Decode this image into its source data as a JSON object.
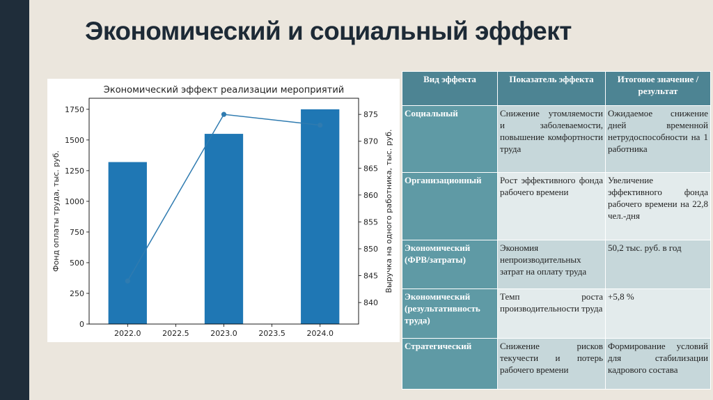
{
  "slide_title": "Экономический и социальный эффект",
  "chart_data": {
    "type": "bar",
    "title": "Экономический эффект реализации мероприятий",
    "x": [
      2022.0,
      2023.0,
      2024.0
    ],
    "bars": {
      "axis": "left",
      "values": [
        1320,
        1550,
        1750
      ]
    },
    "line": {
      "axis": "right",
      "values": [
        844,
        875,
        873
      ]
    },
    "xlim": [
      2021.6,
      2024.4
    ],
    "x_ticks": [
      2022.0,
      2022.5,
      2023.0,
      2023.5,
      2024.0
    ],
    "x_tick_labels": [
      "2022.0",
      "2022.5",
      "2023.0",
      "2023.5",
      "2024.0"
    ],
    "ylabel": "Фонд оплаты труда, тыс. руб.",
    "ylim": [
      0,
      1840
    ],
    "y_ticks": [
      0,
      250,
      500,
      750,
      1000,
      1250,
      1500,
      1750
    ],
    "y_tick_labels": [
      "0",
      "250",
      "500",
      "750",
      "1000",
      "1250",
      "1500",
      "1750"
    ],
    "y2label": "Выручка на одного работника, тыс. руб.",
    "y2lim": [
      836,
      878
    ],
    "y2_ticks": [
      840,
      845,
      850,
      855,
      860,
      865,
      870,
      875
    ],
    "y2_tick_labels": [
      "840",
      "845",
      "850",
      "855",
      "860",
      "865",
      "870",
      "875"
    ],
    "grid": false,
    "bar_color": "#1f77b4",
    "line_color": "#2f7bb0"
  },
  "table": {
    "headers": [
      "Вид эффекта",
      "Показатель эффекта",
      "Итоговое значение / результат"
    ],
    "rows": [
      {
        "type": "Социальный",
        "indicator": "Снижение утомляемости и заболеваемости, повышение комфортности труда",
        "result": "Ожидаемое снижение дней временной нетрудоспособности на 1 работника"
      },
      {
        "type": "Организационный",
        "indicator": "Рост эффективного фонда рабочего времени",
        "result": "Увеличение эффективного фонда рабочего времени на 22,8 чел.-дня"
      },
      {
        "type": "Экономический (ФРВ/затраты)",
        "indicator": "Экономия непроизводительных затрат на оплату труда",
        "result": "50,2 тыс. руб. в год"
      },
      {
        "type": "Экономический (результативность труда)",
        "indicator": "Темп роста производительности труда",
        "result": "+5,8 %"
      },
      {
        "type": "Стратегический",
        "indicator": "Снижение рисков текучести и потерь рабочего времени",
        "result": "Формирование условий для стабилизации кадрового состава"
      }
    ]
  }
}
